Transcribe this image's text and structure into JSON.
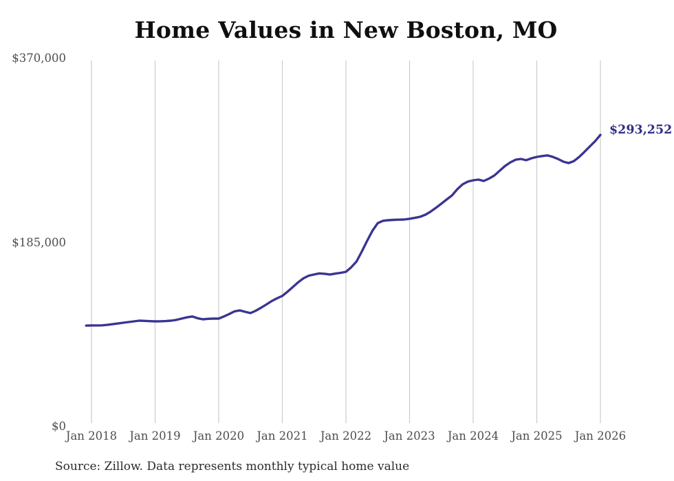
{
  "chart_data": {
    "type": "line",
    "title": "Home Values in New Boston, MO",
    "series_name": "Monthly typical home value",
    "frequency": "monthly",
    "start_month": "Dec 2017",
    "end_month": "Jan 2026",
    "values": [
      101500,
      101700,
      101700,
      101800,
      102300,
      103000,
      103700,
      104400,
      105100,
      105800,
      106500,
      106300,
      106000,
      105800,
      105900,
      106100,
      106500,
      107300,
      108600,
      109800,
      110700,
      109000,
      107900,
      108400,
      108600,
      108600,
      110800,
      113200,
      115900,
      116800,
      115400,
      114100,
      116500,
      119600,
      122800,
      126200,
      129000,
      131400,
      135700,
      140400,
      145100,
      149100,
      151700,
      152900,
      154000,
      153600,
      152900,
      153800,
      154600,
      155600,
      160200,
      166000,
      176000,
      186700,
      196800,
      204500,
      206900,
      207500,
      207800,
      208000,
      208200,
      208900,
      209800,
      210900,
      213000,
      216200,
      220000,
      224100,
      228300,
      232400,
      238600,
      243500,
      246300,
      247600,
      248300,
      246900,
      249300,
      252400,
      257200,
      261900,
      265600,
      268300,
      269000,
      267800,
      269700,
      271100,
      271900,
      272600,
      271200,
      269000,
      266300,
      264900,
      266900,
      271100,
      276200,
      281600,
      286900,
      293252
    ],
    "x_tick_labels": [
      "Jan 2018",
      "Jan 2019",
      "Jan 2020",
      "Jan 2021",
      "Jan 2022",
      "Jan 2023",
      "Jan 2024",
      "Jan 2025",
      "Jan 2026"
    ],
    "x_tick_month_indices": [
      1,
      13,
      25,
      37,
      49,
      61,
      73,
      85,
      97
    ],
    "y_ticks": [
      {
        "label": "$370,000",
        "value": 370000
      },
      {
        "label": "$185,000",
        "value": 185000
      },
      {
        "label": "$0",
        "value": 0
      }
    ],
    "ylim": [
      0,
      370000
    ],
    "grid": "vertical-only",
    "legend": "none",
    "end_label": "$293,252",
    "colors": {
      "line": "#3a3591",
      "end_label": "#312e88",
      "grid": "#cccccc",
      "title": "#0f0f0f",
      "tick": "#4d4d4d",
      "source": "#2b2b2b",
      "background": "#ffffff"
    }
  },
  "footer": {
    "source_note": "Source: Zillow. Data represents monthly typical home value"
  }
}
